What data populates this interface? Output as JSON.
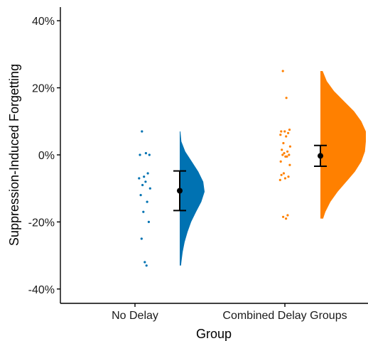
{
  "chart_data": {
    "type": "raincloud",
    "title": "",
    "xlabel": "Group",
    "ylabel": "Suppression-Induced Forgetting",
    "ylim": [
      -44,
      44
    ],
    "y_ticks": [
      {
        "value": 40,
        "label": "40%"
      },
      {
        "value": 20,
        "label": "20%"
      },
      {
        "value": 0,
        "label": "0%"
      },
      {
        "value": -20,
        "label": "-20%"
      },
      {
        "value": -40,
        "label": "-40%"
      }
    ],
    "grid": false,
    "legend": "none",
    "categories": [
      "No Delay",
      "Combined Delay Groups"
    ],
    "groups": [
      {
        "category": "No Delay",
        "color": "#0072B2",
        "mean": -10.7,
        "error_low": -16.6,
        "error_high": -4.8,
        "points": [
          7,
          0.5,
          0,
          0,
          -5.5,
          -6.5,
          -7,
          -8,
          -9,
          -10,
          -12,
          -14,
          -17,
          -20,
          -25,
          -32,
          -33
        ],
        "density": [
          {
            "y": 7,
            "d": 0.02
          },
          {
            "y": 4,
            "d": 0.05
          },
          {
            "y": 1,
            "d": 0.17
          },
          {
            "y": -2,
            "d": 0.37
          },
          {
            "y": -5,
            "d": 0.57
          },
          {
            "y": -8,
            "d": 0.72
          },
          {
            "y": -11,
            "d": 0.76
          },
          {
            "y": -14,
            "d": 0.66
          },
          {
            "y": -17,
            "d": 0.5
          },
          {
            "y": -20,
            "d": 0.35
          },
          {
            "y": -23,
            "d": 0.24
          },
          {
            "y": -26,
            "d": 0.15
          },
          {
            "y": -29,
            "d": 0.09
          },
          {
            "y": -32,
            "d": 0.05
          },
          {
            "y": -33,
            "d": 0.04
          }
        ]
      },
      {
        "category": "Combined Delay Groups",
        "color": "#FF8000",
        "mean": -0.3,
        "error_low": -3.4,
        "error_high": 2.8,
        "points": [
          25,
          17,
          7.5,
          7,
          6.5,
          7,
          6,
          5.5,
          3.5,
          2.5,
          1.5,
          1,
          0.5,
          0,
          0,
          -0.5,
          -0.5,
          -2,
          -3,
          -5.5,
          -6,
          -6.5,
          -7,
          -7.5,
          -18,
          -18.5,
          -19
        ],
        "density": [
          {
            "y": 25,
            "d": 0.05
          },
          {
            "y": 22,
            "d": 0.14
          },
          {
            "y": 19,
            "d": 0.3
          },
          {
            "y": 16,
            "d": 0.52
          },
          {
            "y": 13,
            "d": 0.74
          },
          {
            "y": 10,
            "d": 0.9
          },
          {
            "y": 7,
            "d": 1.0
          },
          {
            "y": 4,
            "d": 1.0
          },
          {
            "y": 1,
            "d": 0.98
          },
          {
            "y": -2,
            "d": 0.9
          },
          {
            "y": -5,
            "d": 0.76
          },
          {
            "y": -8,
            "d": 0.57
          },
          {
            "y": -11,
            "d": 0.38
          },
          {
            "y": -14,
            "d": 0.22
          },
          {
            "y": -17,
            "d": 0.11
          },
          {
            "y": -19,
            "d": 0.06
          }
        ]
      }
    ]
  }
}
